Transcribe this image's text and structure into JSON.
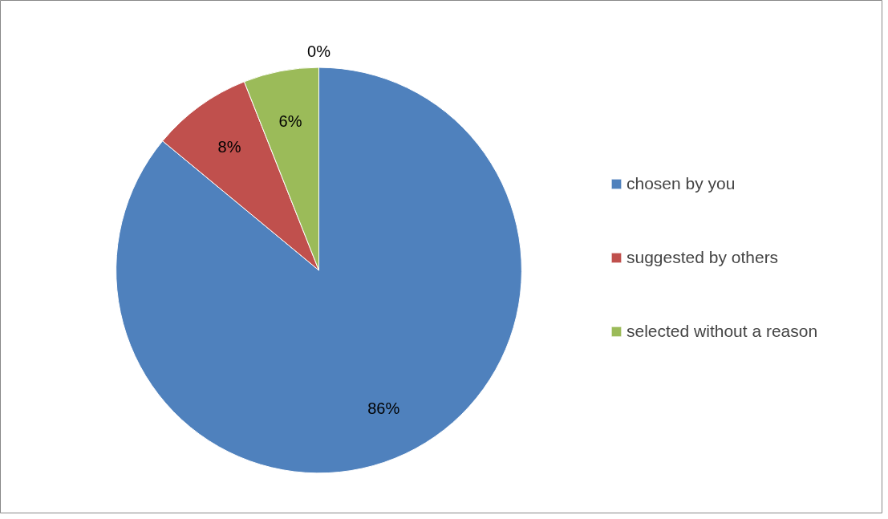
{
  "chart_data": {
    "type": "pie",
    "categories": [
      "chosen by you",
      "suggested by others",
      "selected without a reason",
      null
    ],
    "values": [
      86,
      8,
      6,
      0
    ],
    "colors": [
      "#4f81bd",
      "#c0504d",
      "#9bbb59",
      null
    ],
    "value_labels": [
      "86%",
      "8%",
      "6%",
      "0%"
    ],
    "legend": "right"
  }
}
